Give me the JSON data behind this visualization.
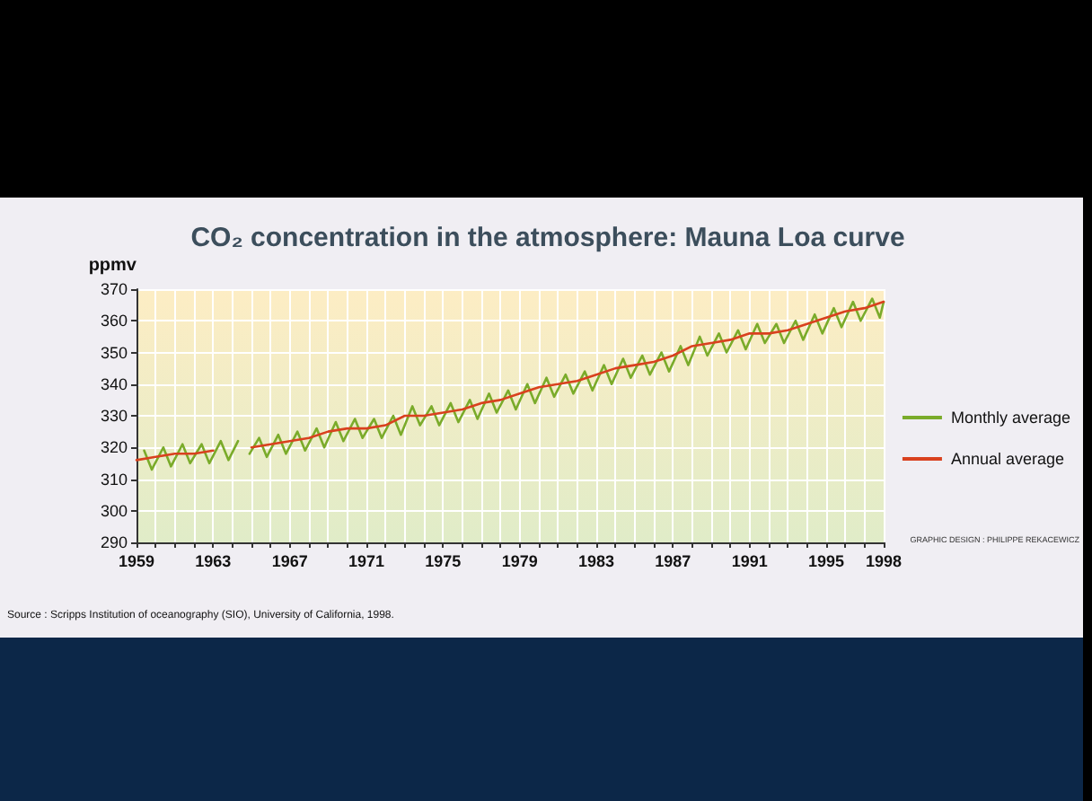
{
  "chart_data": {
    "type": "line",
    "title": "CO₂ concentration in the atmosphere: Mauna Loa curve",
    "ylabel": "ppmv",
    "annotations": [
      "Source : Scripps Institution of oceanography (SIO), University of California, 1998.",
      "GRAPHIC DESIGN : PHILIPPE REKACEWICZ"
    ],
    "xlim": [
      1959,
      1998
    ],
    "xticks": [
      1959,
      1963,
      1967,
      1971,
      1975,
      1979,
      1983,
      1987,
      1991,
      1995,
      1998
    ],
    "ylim": [
      290,
      370
    ],
    "yticks": [
      290,
      300,
      310,
      320,
      330,
      340,
      350,
      360,
      370
    ],
    "grid": true,
    "legend": "right",
    "marker": "none",
    "line_style": "solid",
    "series": [
      {
        "name": "Monthly average",
        "color": "#7aab2a",
        "x": [
          1959.4,
          1959.8,
          1960.4,
          1960.8,
          1961.4,
          1961.8,
          1962.4,
          1962.8,
          1963.4,
          1963.8,
          1964.3,
          1964.6,
          1964.9,
          1965.4,
          1965.8,
          1966.4,
          1966.8,
          1967.4,
          1967.8,
          1968.4,
          1968.8,
          1969.4,
          1969.8,
          1970.4,
          1970.8,
          1971.4,
          1971.8,
          1972.4,
          1972.8,
          1973.4,
          1973.8,
          1974.4,
          1974.8,
          1975.4,
          1975.8,
          1976.4,
          1976.8,
          1977.4,
          1977.8,
          1978.4,
          1978.8,
          1979.4,
          1979.8,
          1980.4,
          1980.8,
          1981.4,
          1981.8,
          1982.4,
          1982.8,
          1983.4,
          1983.8,
          1984.4,
          1984.8,
          1985.4,
          1985.8,
          1986.4,
          1986.8,
          1987.4,
          1987.8,
          1988.4,
          1988.8,
          1989.4,
          1989.8,
          1990.4,
          1990.8,
          1991.4,
          1991.8,
          1992.4,
          1992.8,
          1993.4,
          1993.8,
          1994.4,
          1994.8,
          1995.4,
          1995.8,
          1996.4,
          1996.8,
          1997.4,
          1997.8,
          1998.0
        ],
        "values": [
          319,
          313,
          320,
          314,
          321,
          315,
          321,
          315,
          322,
          316,
          322,
          null,
          318,
          323,
          317,
          324,
          318,
          325,
          319,
          326,
          320,
          328,
          322,
          329,
          323,
          329,
          323,
          330,
          324,
          333,
          327,
          333,
          327,
          334,
          328,
          335,
          329,
          337,
          331,
          338,
          332,
          340,
          334,
          342,
          336,
          343,
          337,
          344,
          338,
          346,
          340,
          348,
          342,
          349,
          343,
          350,
          344,
          352,
          346,
          355,
          349,
          356,
          350,
          357,
          351,
          359,
          353,
          359,
          353,
          360,
          354,
          362,
          356,
          364,
          358,
          366,
          360,
          367,
          361,
          366
        ]
      },
      {
        "name": "Annual average",
        "color": "#d9411e",
        "x": [
          1959,
          1960,
          1961,
          1962,
          1963,
          1964,
          1965,
          1966,
          1967,
          1968,
          1969,
          1970,
          1971,
          1972,
          1973,
          1974,
          1975,
          1976,
          1977,
          1978,
          1979,
          1980,
          1981,
          1982,
          1983,
          1984,
          1985,
          1986,
          1987,
          1988,
          1989,
          1990,
          1991,
          1992,
          1993,
          1994,
          1995,
          1996,
          1997,
          1998
        ],
        "values": [
          316,
          317,
          318,
          318,
          319,
          null,
          320,
          321,
          322,
          323,
          325,
          326,
          326,
          327,
          330,
          330,
          331,
          332,
          334,
          335,
          337,
          339,
          340,
          341,
          343,
          345,
          346,
          347,
          349,
          352,
          353,
          354,
          356,
          356,
          357,
          359,
          361,
          363,
          364,
          366
        ]
      }
    ]
  }
}
